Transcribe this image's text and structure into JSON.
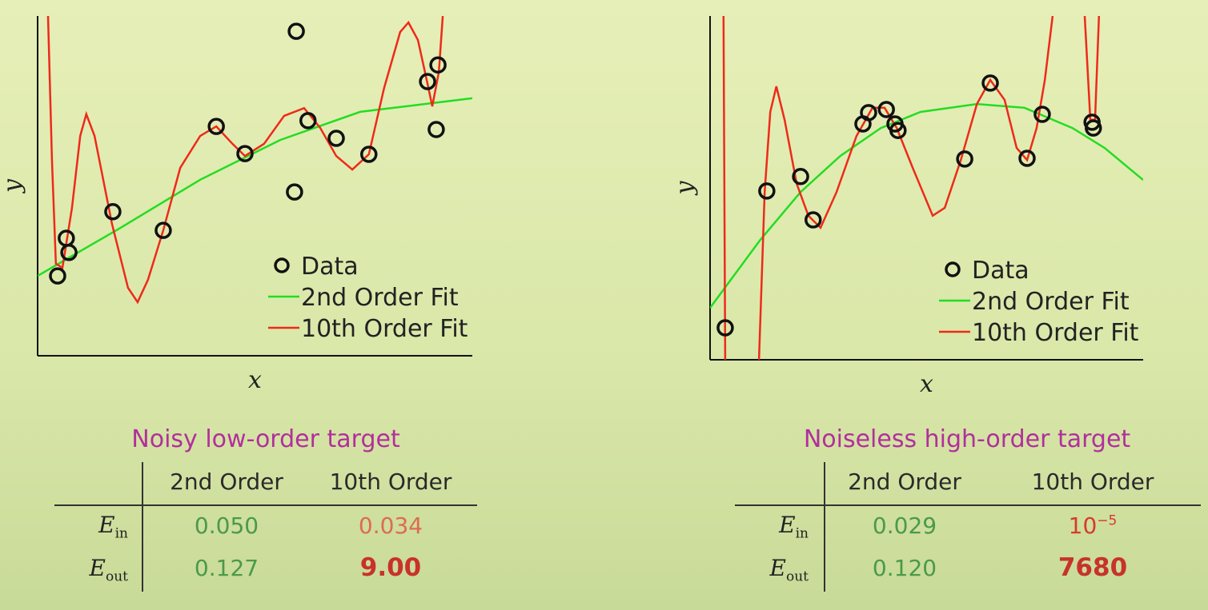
{
  "chart_data": [
    {
      "type": "scatter",
      "xlabel": "x",
      "ylabel": "y",
      "xlim": [
        0,
        100
      ],
      "ylim": [
        0,
        100
      ],
      "legend": "lower right",
      "series": [
        {
          "name": "Data",
          "mode": "markers",
          "color": "#111111",
          "x": [
            4.6,
            6.6,
            7.2,
            17.3,
            28.9,
            41.1,
            47.7,
            59.5,
            59.1,
            62.2,
            68.7,
            76.2,
            89.7,
            92.1,
            91.7
          ],
          "values": [
            23.5,
            34.6,
            30.4,
            42.4,
            36.9,
            67.5,
            59.5,
            95.5,
            48.2,
            69.2,
            64.0,
            59.3,
            80.7,
            85.6,
            66.6
          ]
        },
        {
          "name": "2nd Order Fit",
          "mode": "lines",
          "color": "#22dd22",
          "x": [
            0,
            19,
            37.4,
            55.8,
            74.2,
            100
          ],
          "values": [
            23.5,
            37.6,
            51.8,
            63.5,
            71.8,
            75.8
          ]
        },
        {
          "name": "10th Order Fit",
          "mode": "lines",
          "color": "#ee2a1a",
          "x": [
            2.4,
            3.3,
            4.2,
            5.7,
            7.9,
            9.8,
            11.2,
            13.1,
            17.1,
            20.8,
            23.0,
            25.4,
            28.9,
            32.8,
            37.4,
            41.1,
            44.8,
            47.7,
            52.1,
            56.7,
            61.3,
            65.0,
            68.7,
            72.4,
            76.2,
            79.7,
            83.4,
            85.3,
            87.5,
            89.7,
            90.8,
            92.3,
            93.2
          ],
          "values": [
            100,
            57.6,
            27.1,
            25.9,
            43.5,
            64.7,
            71.1,
            64.7,
            38.8,
            20.0,
            15.8,
            22.4,
            36.9,
            55.3,
            64.7,
            67.5,
            62.4,
            58.8,
            62.4,
            70.6,
            72.9,
            67.1,
            58.8,
            54.8,
            59.3,
            78.8,
            95.3,
            98.1,
            92.9,
            80.0,
            73.4,
            83.5,
            100
          ]
        }
      ]
    },
    {
      "type": "scatter",
      "xlabel": "x",
      "ylabel": "y",
      "xlim": [
        0,
        100
      ],
      "ylim": [
        0,
        100
      ],
      "legend": "lower right",
      "series": [
        {
          "name": "Data",
          "mode": "markers",
          "color": "#111111",
          "x": [
            3.5,
            13.1,
            20.9,
            23.8,
            35.3,
            36.6,
            40.7,
            42.7,
            43.4,
            58.8,
            64.7,
            73.2,
            76.7,
            88.2,
            88.5
          ],
          "values": [
            9.3,
            49.1,
            53.3,
            40.7,
            68.6,
            71.9,
            72.8,
            68.6,
            66.7,
            58.4,
            80.5,
            58.6,
            71.4,
            69.1,
            67.4
          ]
        },
        {
          "name": "2nd Order Fit",
          "mode": "lines",
          "color": "#22dd22",
          "x": [
            0,
            11.6,
            20.9,
            30.1,
            39.4,
            48.6,
            61.6,
            72.6,
            83.7,
            91.1,
            100
          ],
          "values": [
            15.1,
            34.9,
            48.8,
            59.3,
            67.4,
            72.1,
            74.4,
            73.3,
            67.4,
            61.6,
            52.3
          ]
        },
        {
          "name": "10th Order Fit",
          "mode": "lines",
          "color": "#ee2a1a",
          "x": [
            3.1,
            3.5,
            null,
            11.3,
            12.6,
            13.9,
            15.3,
            17.2,
            20.0,
            22.7,
            25.5,
            29.2,
            33.8,
            37.5,
            40.3,
            43.1,
            46.8,
            51.4,
            54.2,
            57.9,
            61.6,
            64.7,
            68.0,
            70.8,
            73.2,
            75.4,
            77.3,
            79.1,
            null,
            86.5,
            87.8,
            88.9,
            89.8
          ],
          "values": [
            100,
            0,
            null,
            0,
            48.8,
            72.1,
            79.5,
            69.8,
            51.2,
            41.9,
            38.4,
            48.8,
            65.1,
            73.3,
            73.3,
            67.4,
            55.8,
            41.9,
            44.2,
            58.1,
            74.4,
            81.4,
            75.6,
            61.6,
            58.1,
            67.4,
            81.4,
            100,
            null,
            100,
            69.8,
            69.8,
            100
          ]
        }
      ]
    }
  ],
  "tables": [
    {
      "title": "Noisy low-order target",
      "columns": [
        "2nd Order",
        "10th Order"
      ],
      "rows": [
        {
          "symbol": "E",
          "subscript": "in",
          "cells": [
            "0.050",
            "0.034"
          ]
        },
        {
          "symbol": "E",
          "subscript": "out",
          "cells": [
            "0.127",
            "9.00"
          ]
        }
      ]
    },
    {
      "title": "Noiseless high-order target",
      "columns": [
        "2nd Order",
        "10th Order"
      ],
      "rows": [
        {
          "symbol": "E",
          "subscript": "in",
          "cells": [
            "0.029",
            {
              "base": "10",
              "exponent": "−5"
            }
          ]
        },
        {
          "symbol": "E",
          "subscript": "out",
          "cells": [
            "0.120",
            "7680"
          ]
        }
      ]
    }
  ]
}
